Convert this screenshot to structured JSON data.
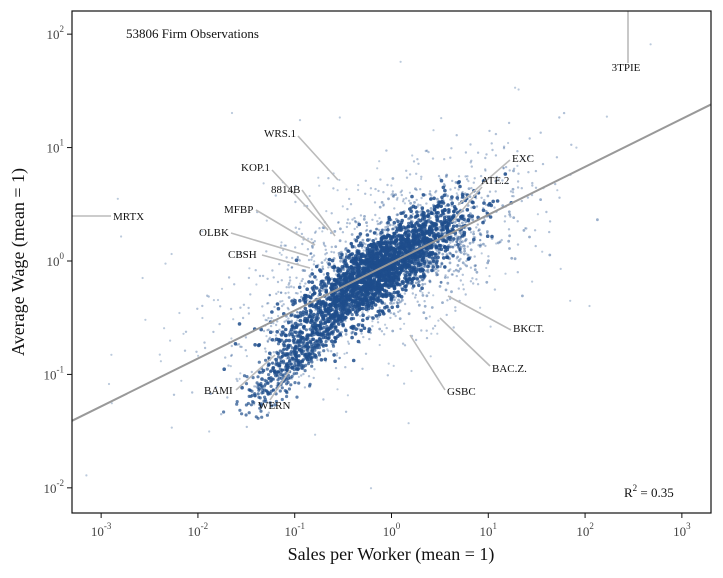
{
  "chart_data": {
    "type": "scatter",
    "title": "",
    "xlabel": "Sales per Worker (mean = 1)",
    "ylabel": "Average Wage (mean = 1)",
    "x_scale": "log",
    "y_scale": "log",
    "xlim": [
      0.0005,
      2000
    ],
    "ylim": [
      0.006,
      160
    ],
    "x_ticks": [
      0.001,
      0.01,
      0.1,
      1,
      10,
      100,
      1000
    ],
    "y_ticks": [
      0.01,
      0.1,
      1,
      10,
      100
    ],
    "x_tick_labels": [
      {
        "base": "10",
        "exp": "-3"
      },
      {
        "base": "10",
        "exp": "-2"
      },
      {
        "base": "10",
        "exp": "-1"
      },
      {
        "base": "10",
        "exp": "0"
      },
      {
        "base": "10",
        "exp": "1"
      },
      {
        "base": "10",
        "exp": "2"
      },
      {
        "base": "10",
        "exp": "3"
      }
    ],
    "y_tick_labels": [
      {
        "base": "10",
        "exp": "-2"
      },
      {
        "base": "10",
        "exp": "-1"
      },
      {
        "base": "10",
        "exp": "0"
      },
      {
        "base": "10",
        "exp": "1"
      },
      {
        "base": "10",
        "exp": "2"
      }
    ],
    "observations_label": "53806 Firm Observations",
    "r_squared_label": {
      "prefix": "R",
      "exp": "2",
      "suffix": " = 0.35"
    },
    "fit_line": {
      "x": [
        0.0005,
        2000
      ],
      "y": [
        0.039,
        24
      ]
    },
    "point_color": "#1f4e8c",
    "fit_color": "#999999",
    "grid": false,
    "annotations": [
      {
        "label": "3TPIE",
        "x": 250,
        "y": 150
      },
      {
        "label": "MRTX",
        "x": 0.0005,
        "y": 2.5
      },
      {
        "label": "WRS.1",
        "x": 0.28,
        "y": 6
      },
      {
        "label": "KOP.1",
        "x": 0.24,
        "y": 2.5
      },
      {
        "label": "8814B",
        "x": 0.3,
        "y": 2.2
      },
      {
        "label": "MFBP",
        "x": 0.2,
        "y": 1.6
      },
      {
        "label": "OLBK",
        "x": 0.18,
        "y": 1.2
      },
      {
        "label": "CBSH",
        "x": 0.22,
        "y": 0.95
      },
      {
        "label": "EXC",
        "x": 7,
        "y": 3.5
      },
      {
        "label": "ATE.2",
        "x": 5,
        "y": 2.4
      },
      {
        "label": "BKCT.",
        "x": 3,
        "y": 0.5
      },
      {
        "label": "BAC.Z.",
        "x": 2.5,
        "y": 0.42
      },
      {
        "label": "GSBC",
        "x": 1.5,
        "y": 0.28
      },
      {
        "label": "BAMI",
        "x": 0.09,
        "y": 0.13
      },
      {
        "label": "WERN",
        "x": 0.1,
        "y": 0.1
      }
    ]
  }
}
